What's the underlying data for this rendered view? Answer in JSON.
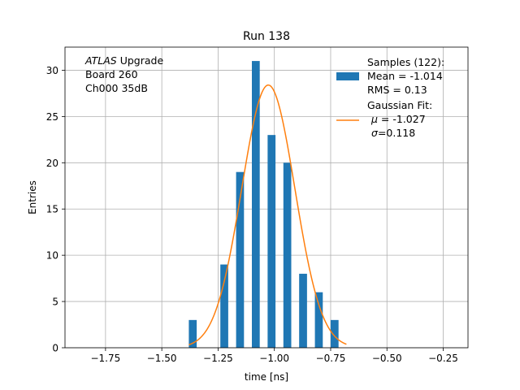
{
  "chart_data": {
    "type": "bar",
    "title": "Run 138",
    "xlabel": "time [ns]",
    "ylabel": "Entries",
    "xlim": [
      -1.93,
      -0.14
    ],
    "ylim": [
      0,
      32.5
    ],
    "xticks": [
      -1.75,
      -1.5,
      -1.25,
      -1.0,
      -0.75,
      -0.5,
      -0.25
    ],
    "xtick_labels": [
      "−1.75",
      "−1.50",
      "−1.25",
      "−1.00",
      "−0.75",
      "−0.50",
      "−0.25"
    ],
    "yticks": [
      0,
      5,
      10,
      15,
      20,
      25,
      30
    ],
    "ytick_labels": [
      "0",
      "5",
      "10",
      "15",
      "20",
      "25",
      "30"
    ],
    "grid": true,
    "legend_placement": "top-right",
    "histogram": {
      "bin_edges": [
        -1.38,
        -1.345,
        -1.31,
        -1.275,
        -1.24,
        -1.205,
        -1.17,
        -1.135,
        -1.1,
        -1.065,
        -1.03,
        -0.995,
        -0.96,
        -0.925,
        -0.89,
        -0.855,
        -0.82,
        -0.785,
        -0.75,
        -0.715,
        -0.68
      ],
      "counts": [
        3,
        0,
        0,
        0,
        9,
        0,
        19,
        0,
        31,
        0,
        23,
        0,
        20,
        0,
        8,
        0,
        6,
        0,
        3,
        0
      ],
      "color": "#1f77b4"
    },
    "fit": {
      "type": "gaussian",
      "mu": -1.027,
      "sigma": 0.118,
      "amplitude": 28.4,
      "x_range": [
        -1.38,
        -0.68
      ],
      "color": "#ff7f0e"
    },
    "annotation_lines": [
      {
        "italic": "ATLAS",
        "text": " Upgrade"
      },
      {
        "italic": "",
        "text": " Board 260"
      },
      {
        "italic": "",
        "text": " Ch000 35dB"
      }
    ],
    "legend": {
      "histogram_lines": [
        "Samples (122):",
        " Mean = -1.014",
        " RMS = 0.13"
      ],
      "fit_lines": [
        {
          "text": "Gaussian Fit:"
        },
        {
          "symbol": "μ",
          "text": " = -1.027"
        },
        {
          "symbol": "σ",
          "text": "=0.118"
        }
      ]
    }
  }
}
